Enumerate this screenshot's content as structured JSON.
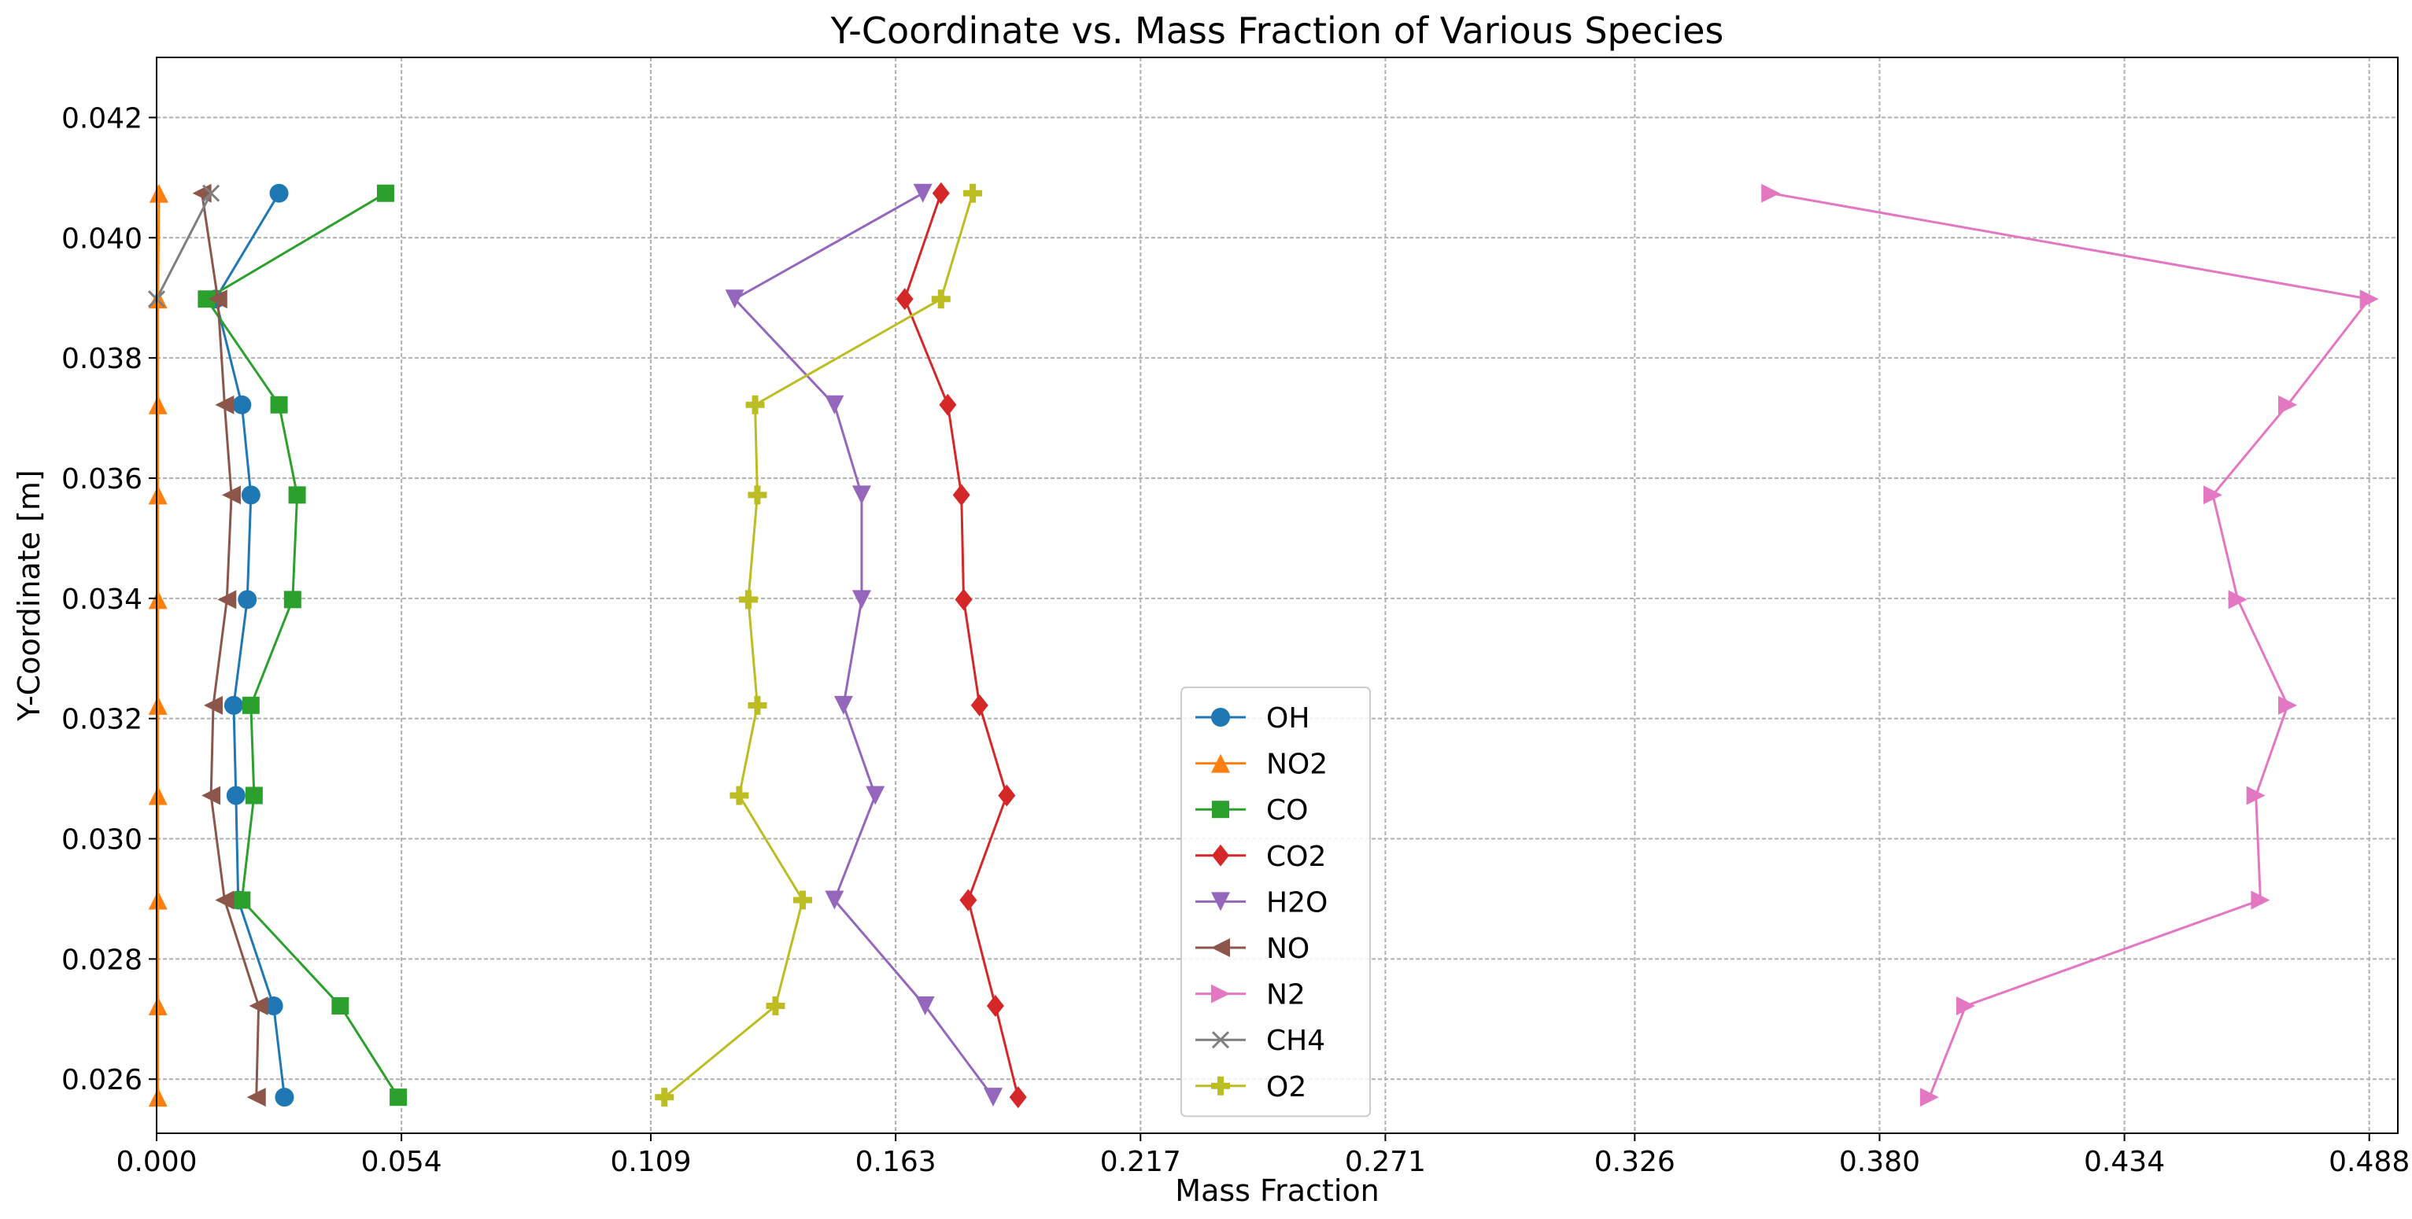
{
  "chart_data": {
    "type": "line",
    "title": "Y-Coordinate vs. Mass Fraction of Various Species",
    "xlabel": "Mass Fraction",
    "ylabel": "Y-Coordinate [m]",
    "xlim": [
      0,
      0.4943
    ],
    "ylim": [
      0.0251,
      0.043
    ],
    "xticks": [
      0.0,
      0.054,
      0.109,
      0.163,
      0.217,
      0.271,
      0.326,
      0.38,
      0.434,
      0.488
    ],
    "xtick_labels": [
      "0.000",
      "0.054",
      "0.109",
      "0.163",
      "0.217",
      "0.271",
      "0.326",
      "0.380",
      "0.434",
      "0.488"
    ],
    "yticks": [
      0.026,
      0.028,
      0.03,
      0.032,
      0.034,
      0.036,
      0.038,
      0.04,
      0.042
    ],
    "ytick_labels": [
      "0.026",
      "0.028",
      "0.030",
      "0.032",
      "0.034",
      "0.036",
      "0.038",
      "0.040",
      "0.042"
    ],
    "grid": true,
    "legend_position": "lower-center",
    "y": [
      0.0257,
      0.02722,
      0.02898,
      0.03072,
      0.03222,
      0.03398,
      0.03572,
      0.03722,
      0.03898,
      0.04074
    ],
    "series": [
      {
        "name": "OH",
        "color": "#1f77b4",
        "marker": "circle",
        "x": [
          0.0282,
          0.0258,
          0.018,
          0.0175,
          0.017,
          0.02,
          0.0208,
          0.0188,
          0.013,
          0.027
        ]
      },
      {
        "name": "NO2",
        "color": "#ff7f0e",
        "marker": "triangle-up",
        "x": [
          0.0003,
          0.0003,
          0.0003,
          0.0003,
          0.0003,
          0.0003,
          0.0003,
          0.0003,
          0.0003,
          0.0005
        ]
      },
      {
        "name": "CO",
        "color": "#2ca02c",
        "marker": "square",
        "x": [
          0.0533,
          0.0405,
          0.0188,
          0.0215,
          0.0208,
          0.03,
          0.031,
          0.027,
          0.011,
          0.0505
        ]
      },
      {
        "name": "CO2",
        "color": "#d62728",
        "marker": "diamond",
        "x": [
          0.19,
          0.185,
          0.179,
          0.1875,
          0.1815,
          0.178,
          0.1775,
          0.1745,
          0.165,
          0.173
        ]
      },
      {
        "name": "H2O",
        "color": "#9467bd",
        "marker": "triangle-down",
        "x": [
          0.1845,
          0.1695,
          0.1495,
          0.1585,
          0.1515,
          0.1555,
          0.1555,
          0.1495,
          0.1275,
          0.169
        ]
      },
      {
        "name": "NO",
        "color": "#8c564b",
        "marker": "triangle-left",
        "x": [
          0.022,
          0.0225,
          0.015,
          0.012,
          0.0125,
          0.0155,
          0.0165,
          0.015,
          0.0135,
          0.01
        ]
      },
      {
        "name": "N2",
        "color": "#e377c2",
        "marker": "triangle-right",
        "x": [
          0.391,
          0.399,
          0.464,
          0.463,
          0.47,
          0.459,
          0.4535,
          0.47,
          0.488,
          0.356
        ]
      },
      {
        "name": "CH4",
        "color": "#7f7f7f",
        "marker": "x",
        "x": [
          null,
          null,
          null,
          null,
          null,
          null,
          null,
          null,
          0.0,
          0.012
        ]
      },
      {
        "name": "O2",
        "color": "#bcbd22",
        "marker": "plus",
        "x": [
          0.112,
          0.1365,
          0.1425,
          0.1285,
          0.1325,
          0.1305,
          0.1325,
          0.132,
          0.173,
          0.18
        ]
      }
    ]
  }
}
